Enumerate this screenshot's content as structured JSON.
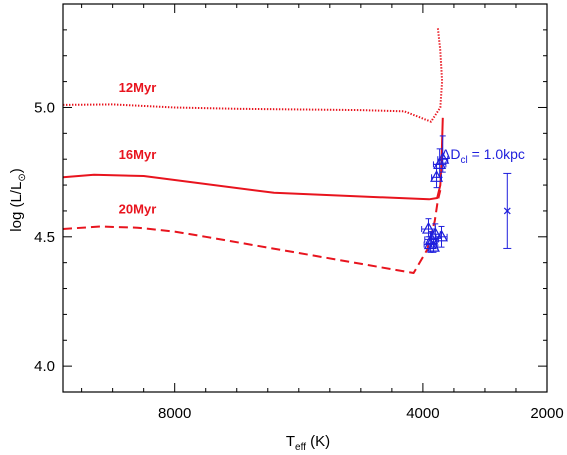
{
  "chart_data": {
    "type": "scatter",
    "xlabel": {
      "main": "T",
      "sub": "eff",
      "rest": " (K)"
    },
    "ylabel": {
      "main": "log (L/L",
      "sub": "⊙",
      "rest": ")"
    },
    "xlim": [
      9800,
      2000
    ],
    "ylim": [
      3.9,
      5.4
    ],
    "x_ticks": [
      8000,
      4000,
      2000
    ],
    "y_ticks": [
      4.0,
      4.5,
      5.0
    ],
    "x_minor_step": 500,
    "y_minor_step": 0.1,
    "tracks": [
      {
        "name": "12Myr",
        "color": "#e8141e",
        "dash": "dotted",
        "label_at": [
          8600,
          5.06
        ],
        "points": [
          [
            9800,
            5.01
          ],
          [
            9000,
            5.012
          ],
          [
            8000,
            5.0
          ],
          [
            7000,
            4.995
          ],
          [
            5000,
            4.99
          ],
          [
            4300,
            4.985
          ],
          [
            3870,
            4.945
          ],
          [
            3720,
            5.0
          ],
          [
            3690,
            5.1
          ],
          [
            3720,
            5.22
          ],
          [
            3760,
            5.31
          ]
        ]
      },
      {
        "name": "16Myr",
        "color": "#e8141e",
        "dash": "solid",
        "label_at": [
          8600,
          4.8
        ],
        "points": [
          [
            9800,
            4.73
          ],
          [
            9300,
            4.74
          ],
          [
            8500,
            4.735
          ],
          [
            6400,
            4.67
          ],
          [
            3900,
            4.645
          ],
          [
            3770,
            4.65
          ],
          [
            3720,
            4.7
          ],
          [
            3700,
            4.78
          ],
          [
            3690,
            4.87
          ],
          [
            3680,
            4.96
          ]
        ]
      },
      {
        "name": "20Myr",
        "color": "#e8141e",
        "dash": "dashed",
        "label_at": [
          8600,
          4.59
        ],
        "points": [
          [
            9800,
            4.53
          ],
          [
            9200,
            4.54
          ],
          [
            8600,
            4.535
          ],
          [
            8000,
            4.52
          ],
          [
            7500,
            4.5
          ],
          [
            4150,
            4.36
          ],
          [
            3930,
            4.45
          ],
          [
            3810,
            4.56
          ],
          [
            3760,
            4.64
          ],
          [
            3720,
            4.68
          ]
        ]
      }
    ],
    "stars": {
      "color": "#1e1edc",
      "points": [
        {
          "x": 3680,
          "y": 4.8,
          "xerr": 80,
          "yerr_up": 0.09,
          "yerr_dn": 0.05
        },
        {
          "x": 3730,
          "y": 4.78,
          "xerr": 100,
          "yerr_up": 0.06,
          "yerr_dn": 0.05
        },
        {
          "x": 3780,
          "y": 4.73,
          "xerr": 80,
          "yerr_up": 0.05,
          "yerr_dn": 0.04
        },
        {
          "x": 3910,
          "y": 4.53,
          "xerr": 110,
          "yerr_up": 0.04,
          "yerr_dn": 0.03
        },
        {
          "x": 3700,
          "y": 4.5,
          "xerr": 90,
          "yerr_up": 0.04,
          "yerr_dn": 0.04
        },
        {
          "x": 3800,
          "y": 4.51,
          "xerr": 80,
          "yerr_up": 0.04,
          "yerr_dn": 0.03
        },
        {
          "x": 3860,
          "y": 4.49,
          "xerr": 110,
          "yerr_up": 0.03,
          "yerr_dn": 0.03
        },
        {
          "x": 3880,
          "y": 4.47,
          "xerr": 100,
          "yerr_up": 0.03,
          "yerr_dn": 0.03
        },
        {
          "x": 3830,
          "y": 4.46,
          "xerr": 70,
          "yerr_up": 0.03,
          "yerr_dn": 0.02
        }
      ]
    },
    "distance_error": {
      "label_main": "ΔD",
      "label_sub": "cl",
      "label_rest": " = 1.0kpc",
      "color": "#1e1edc",
      "x": 2640,
      "y": 4.6,
      "y_low": 4.455,
      "y_high": 4.745
    }
  }
}
